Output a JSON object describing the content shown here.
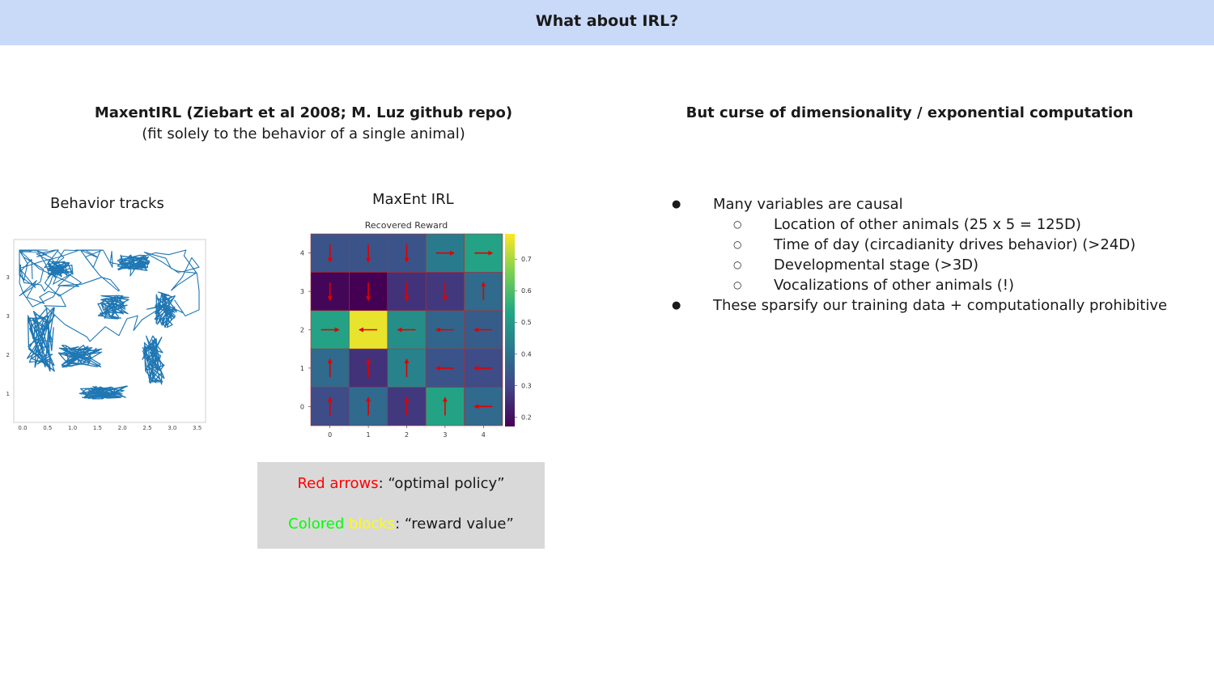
{
  "header": {
    "title": "What about IRL?"
  },
  "left": {
    "title": "MaxentIRL (Ziebart et al 2008; M. Luz github repo)",
    "subtitle": "(fit solely to the behavior of a single animal)",
    "tracks_label": "Behavior tracks",
    "maxent_label": "MaxEnt IRL"
  },
  "tracks_axes": {
    "x_ticks": [
      "0.0",
      "0.5",
      "1.0",
      "1.5",
      "2.0",
      "2.5",
      "3.0",
      "3.5"
    ],
    "y_ticks": [
      "3",
      "3",
      "2",
      "1"
    ]
  },
  "chart_data": {
    "type": "heatmap",
    "title": "Recovered Reward",
    "x_ticks": [
      "0",
      "1",
      "2",
      "3",
      "4"
    ],
    "y_ticks": [
      "4",
      "3",
      "2",
      "1",
      "0"
    ],
    "colorbar_ticks": [
      "0.7",
      "0.6",
      "0.5",
      "0.4",
      "0.3",
      "0.2"
    ],
    "colorbar_range": [
      0.17,
      0.78
    ],
    "rows": [
      {
        "y": 4,
        "values": [
          0.33,
          0.33,
          0.33,
          0.42,
          0.52
        ],
        "arrows": [
          "down",
          "down",
          "down",
          "right",
          "right"
        ]
      },
      {
        "y": 3,
        "values": [
          0.18,
          0.17,
          0.26,
          0.27,
          0.38
        ],
        "arrows": [
          "down",
          "down",
          "down",
          "down",
          "up"
        ]
      },
      {
        "y": 2,
        "values": [
          0.52,
          0.76,
          0.47,
          0.37,
          0.35
        ],
        "arrows": [
          "right",
          "left",
          "left",
          "left",
          "left"
        ]
      },
      {
        "y": 1,
        "values": [
          0.38,
          0.26,
          0.44,
          0.33,
          0.31
        ],
        "arrows": [
          "up",
          "up",
          "up",
          "left",
          "left"
        ]
      },
      {
        "y": 0,
        "values": [
          0.31,
          0.38,
          0.27,
          0.52,
          0.38
        ],
        "arrows": [
          "up",
          "up",
          "up",
          "up",
          "left"
        ]
      }
    ]
  },
  "legend": {
    "red_text": "Red arrows",
    "red_rest": ": “optimal policy”",
    "green_text": "Colored",
    "yellow_text": " blocks",
    "green_rest": ": “reward value”"
  },
  "right": {
    "title": "But curse of dimensionality / exponential computation",
    "bullet1": "Many variables are causal",
    "sub1": "Location of other animals (25 x 5 = 125D)",
    "sub2": "Time of day (circadianity drives behavior) (>24D)",
    "sub3": "Developmental stage (>3D)",
    "sub4": "Vocalizations of other animals (!)",
    "bullet2": "These sparsify our training data + computationally prohibitive"
  },
  "colors": {
    "header_bg": "#c9daf8",
    "legend_bg": "#d9d9d9",
    "track": "#1f77b4",
    "arrow": "#e00000"
  }
}
